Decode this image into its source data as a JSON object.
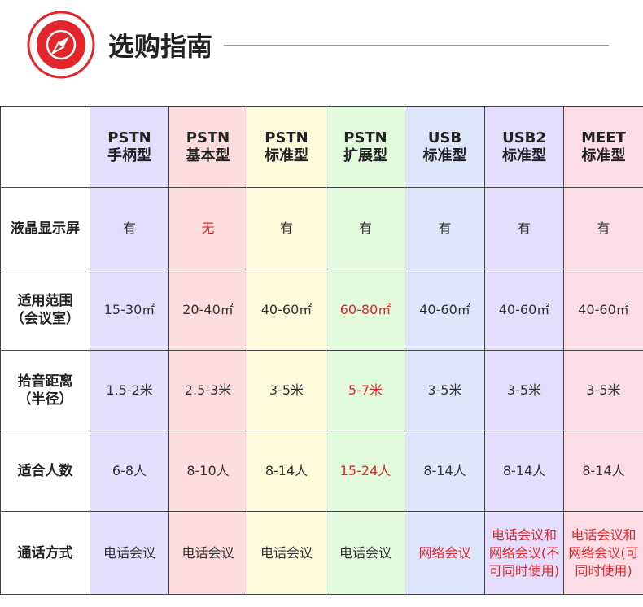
{
  "header": {
    "title": "选购指南"
  },
  "table": {
    "columns": [
      [
        "PSTN",
        "手柄型"
      ],
      [
        "PSTN",
        "基本型"
      ],
      [
        "PSTN",
        "标准型"
      ],
      [
        "PSTN",
        "扩展型"
      ],
      [
        "USB",
        "标准型"
      ],
      [
        "USB2",
        "标准型"
      ],
      [
        "MEET",
        "标准型"
      ]
    ],
    "rows": [
      {
        "label": [
          "液晶显示屏"
        ],
        "cells": [
          "有",
          "无",
          "有",
          "有",
          "有",
          "有",
          "有"
        ]
      },
      {
        "label": [
          "适用范围",
          "（会议室）"
        ],
        "cells": [
          "15-30㎡",
          "20-40㎡",
          "40-60㎡",
          "60-80㎡",
          "40-60㎡",
          "40-60㎡",
          "40-60㎡"
        ]
      },
      {
        "label": [
          "拾音距离",
          "（半径）"
        ],
        "cells": [
          "1.5-2米",
          "2.5-3米",
          "3-5米",
          "5-7米",
          "3-5米",
          "3-5米",
          "3-5米"
        ]
      },
      {
        "label": [
          "适合人数"
        ],
        "cells": [
          "6-8人",
          "8-10人",
          "8-14人",
          "15-24人",
          "8-14人",
          "8-14人",
          "8-14人"
        ]
      },
      {
        "label": [
          "通话方式"
        ],
        "cells": [
          "电话会议",
          "电话会议",
          "电话会议",
          "电话会议",
          "网络会议",
          "电话会议和网络会议(不可同时使用)",
          "电话会议和网络会议(可同时使用)"
        ]
      }
    ]
  }
}
